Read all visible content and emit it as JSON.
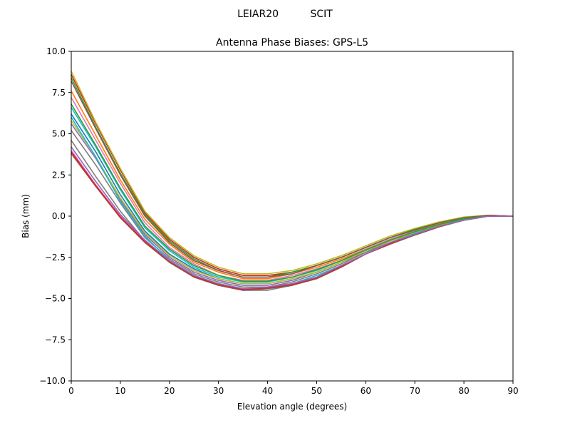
{
  "figure": {
    "suptitle": "LEIAR20          SCIT"
  },
  "chart_data": {
    "type": "line",
    "title": "Antenna Phase Biases: GPS-L5",
    "xlabel": "Elevation angle (degrees)",
    "ylabel": "Bias (mm)",
    "xlim": [
      0,
      90
    ],
    "ylim": [
      -10,
      10
    ],
    "xticks": [
      0,
      10,
      20,
      30,
      40,
      50,
      60,
      70,
      80,
      90
    ],
    "xtick_labels": [
      "0",
      "10",
      "20",
      "30",
      "40",
      "50",
      "60",
      "70",
      "80",
      "90"
    ],
    "yticks": [
      -10,
      -7.5,
      -5,
      -2.5,
      0,
      2.5,
      5,
      7.5,
      10
    ],
    "ytick_labels": [
      "−10.0",
      "−7.5",
      "−5.0",
      "−2.5",
      "0.0",
      "2.5",
      "5.0",
      "7.5",
      "10.0"
    ],
    "grid": false,
    "legend": "none",
    "x": [
      0,
      5,
      10,
      15,
      20,
      25,
      30,
      35,
      40,
      45,
      50,
      55,
      60,
      65,
      70,
      75,
      80,
      85,
      90
    ],
    "series": [
      {
        "color": "#d62728",
        "values": [
          8.6,
          5.6,
          2.8,
          0.2,
          -1.4,
          -2.5,
          -3.2,
          -3.6,
          -3.6,
          -3.4,
          -3.0,
          -2.5,
          -1.9,
          -1.3,
          -0.8,
          -0.4,
          -0.1,
          0.05,
          0.0
        ]
      },
      {
        "color": "#bcbd22",
        "values": [
          8.8,
          5.7,
          2.9,
          0.3,
          -1.3,
          -2.4,
          -3.1,
          -3.5,
          -3.5,
          -3.3,
          -2.9,
          -2.4,
          -1.8,
          -1.2,
          -0.75,
          -0.35,
          -0.05,
          0.05,
          0.0
        ]
      },
      {
        "color": "#2ca02c",
        "values": [
          8.4,
          5.4,
          2.6,
          0.1,
          -1.5,
          -2.6,
          -3.3,
          -3.7,
          -3.7,
          -3.4,
          -3.0,
          -2.5,
          -1.9,
          -1.3,
          -0.8,
          -0.4,
          -0.1,
          0.05,
          0.0
        ]
      },
      {
        "color": "#ff7f0e",
        "values": [
          7.6,
          4.9,
          2.2,
          -0.2,
          -1.7,
          -2.8,
          -3.4,
          -3.8,
          -3.8,
          -3.5,
          -3.1,
          -2.6,
          -2.0,
          -1.4,
          -0.9,
          -0.45,
          -0.1,
          0.0,
          0.0
        ]
      },
      {
        "color": "#e377c2",
        "values": [
          7.2,
          4.6,
          2.0,
          -0.4,
          -1.9,
          -2.9,
          -3.6,
          -3.9,
          -3.9,
          -3.6,
          -3.2,
          -2.7,
          -2.0,
          -1.4,
          -0.9,
          -0.5,
          -0.15,
          0.0,
          0.0
        ]
      },
      {
        "color": "#8c564b",
        "values": [
          8.2,
          5.3,
          2.5,
          0.0,
          -1.6,
          -2.7,
          -3.3,
          -3.7,
          -3.7,
          -3.5,
          -3.0,
          -2.5,
          -1.9,
          -1.3,
          -0.85,
          -0.4,
          -0.1,
          0.05,
          0.0
        ]
      },
      {
        "color": "#17becf",
        "values": [
          6.6,
          4.2,
          1.6,
          -0.7,
          -2.1,
          -3.1,
          -3.7,
          -4.0,
          -4.0,
          -3.7,
          -3.3,
          -2.7,
          -2.1,
          -1.5,
          -0.95,
          -0.5,
          -0.15,
          0.0,
          0.0
        ]
      },
      {
        "color": "#1f77b4",
        "values": [
          6.2,
          3.9,
          1.3,
          -0.9,
          -2.3,
          -3.2,
          -3.8,
          -4.1,
          -4.1,
          -3.8,
          -3.4,
          -2.8,
          -2.1,
          -1.5,
          -1.0,
          -0.55,
          -0.2,
          0.0,
          0.0
        ]
      },
      {
        "color": "#9467bd",
        "values": [
          5.6,
          3.5,
          1.0,
          -1.1,
          -2.5,
          -3.4,
          -3.9,
          -4.2,
          -4.2,
          -3.9,
          -3.4,
          -2.8,
          -2.2,
          -1.5,
          -1.0,
          -0.55,
          -0.2,
          0.0,
          0.0
        ]
      },
      {
        "color": "#7f7f7f",
        "values": [
          5.2,
          3.1,
          0.8,
          -1.3,
          -2.6,
          -3.5,
          -4.0,
          -4.3,
          -4.3,
          -4.0,
          -3.5,
          -2.9,
          -2.2,
          -1.6,
          -1.05,
          -0.6,
          -0.2,
          0.0,
          0.0
        ]
      },
      {
        "color": "#bcbd22",
        "values": [
          5.8,
          3.6,
          1.1,
          -1.0,
          -2.4,
          -3.3,
          -3.8,
          -4.1,
          -4.1,
          -3.8,
          -3.4,
          -2.8,
          -2.1,
          -1.5,
          -1.0,
          -0.55,
          -0.2,
          0.0,
          0.0
        ]
      },
      {
        "color": "#17becf",
        "values": [
          6.0,
          3.6,
          0.9,
          -1.2,
          -2.7,
          -3.6,
          -4.1,
          -4.4,
          -4.4,
          -4.1,
          -3.6,
          -3.0,
          -2.3,
          -1.6,
          -1.05,
          -0.6,
          -0.2,
          0.0,
          0.0
        ]
      },
      {
        "color": "#2ca02c",
        "values": [
          6.8,
          4.3,
          1.7,
          -0.6,
          -2.0,
          -3.0,
          -3.6,
          -3.95,
          -3.95,
          -3.7,
          -3.25,
          -2.7,
          -2.05,
          -1.45,
          -0.95,
          -0.5,
          -0.15,
          0.0,
          0.0
        ]
      },
      {
        "color": "#7f7f7f",
        "values": [
          4.6,
          2.4,
          0.3,
          -1.5,
          -2.8,
          -3.7,
          -4.2,
          -4.5,
          -4.5,
          -4.2,
          -3.7,
          -3.0,
          -2.3,
          -1.6,
          -1.1,
          -0.6,
          -0.25,
          0.0,
          0.0
        ]
      },
      {
        "color": "#e377c2",
        "values": [
          4.0,
          1.9,
          0.0,
          -1.5,
          -2.7,
          -3.6,
          -4.1,
          -4.4,
          -4.3,
          -4.1,
          -3.7,
          -3.0,
          -2.3,
          -1.6,
          -1.1,
          -0.6,
          -0.25,
          0.0,
          0.0
        ]
      },
      {
        "color": "#8c564b",
        "values": [
          3.8,
          1.8,
          -0.1,
          -1.6,
          -2.8,
          -3.7,
          -4.2,
          -4.5,
          -4.4,
          -4.2,
          -3.8,
          -3.1,
          -2.3,
          -1.7,
          -1.15,
          -0.65,
          -0.25,
          0.0,
          0.0
        ]
      },
      {
        "color": "#d62728",
        "values": [
          3.9,
          1.85,
          -0.05,
          -1.55,
          -2.75,
          -3.65,
          -4.15,
          -4.45,
          -4.35,
          -4.15,
          -3.75,
          -3.05,
          -2.3,
          -1.65,
          -1.1,
          -0.6,
          -0.25,
          0.0,
          0.0
        ]
      },
      {
        "color": "#9467bd",
        "values": [
          4.2,
          2.1,
          0.1,
          -1.45,
          -2.7,
          -3.6,
          -4.1,
          -4.4,
          -4.3,
          -4.1,
          -3.7,
          -3.0,
          -2.3,
          -1.6,
          -1.1,
          -0.6,
          -0.25,
          0.0,
          0.0
        ]
      }
    ]
  }
}
